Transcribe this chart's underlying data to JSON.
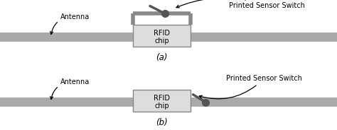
{
  "fig_width": 4.74,
  "fig_height": 1.84,
  "dpi": 100,
  "bg_color": "#ffffff",
  "strip_color": "#aaaaaa",
  "chip_face_color": "#dddddd",
  "chip_edge_color": "#888888",
  "loop_color": "#888888",
  "switch_stick_color": "#555555",
  "switch_dot_color": "#555555",
  "text_color": "#000000",
  "label_a": "(a)",
  "label_b": "(b)",
  "rfid_line1": "RFID",
  "rfid_line2": "chip",
  "antenna_label": "Antenna",
  "switch_label": "Printed Sensor Switch",
  "font_size": 7.0,
  "label_font_size": 8.5
}
